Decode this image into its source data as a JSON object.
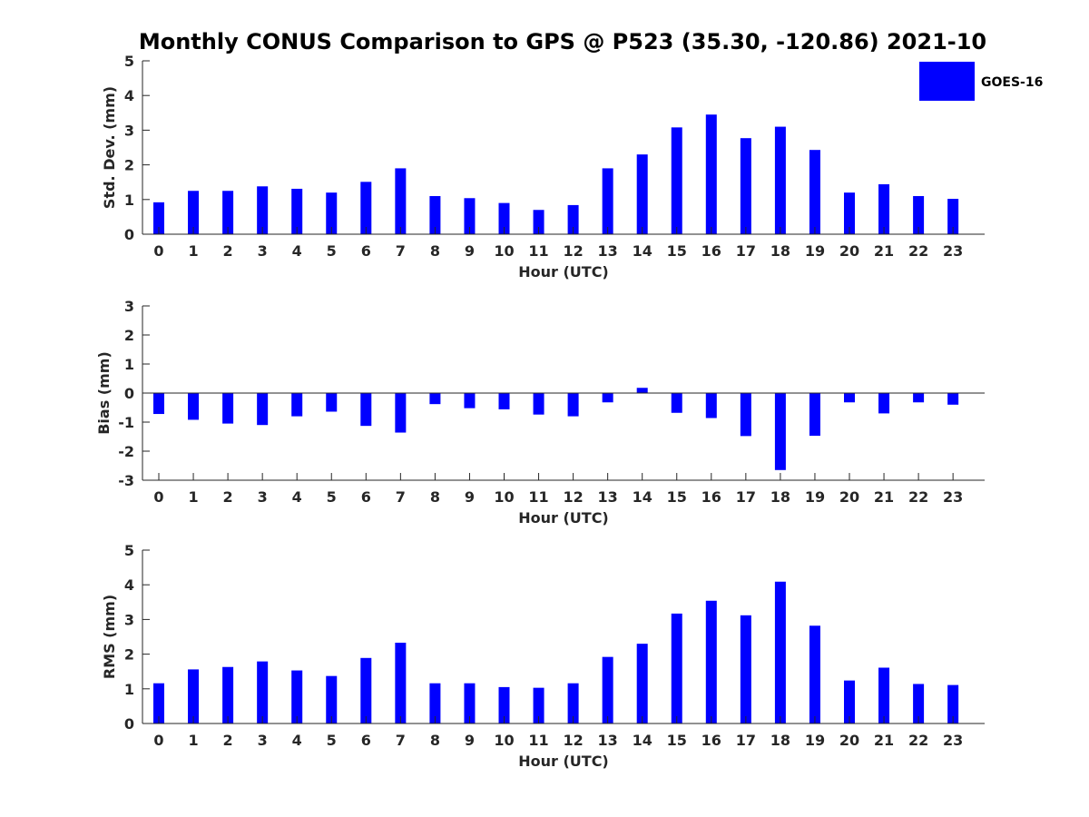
{
  "chart_data": [
    {
      "type": "bar",
      "title": "Monthly CONUS Comparison to GPS @ P523 (35.30, -120.86) 2021-10",
      "xlabel": "Hour (UTC)",
      "ylabel": "Std. Dev. (mm)",
      "ylim": [
        0,
        5
      ],
      "yticks": [
        "0",
        "1",
        "2",
        "3",
        "4",
        "5"
      ],
      "categories": [
        "0",
        "1",
        "2",
        "3",
        "4",
        "5",
        "6",
        "7",
        "8",
        "9",
        "10",
        "11",
        "12",
        "13",
        "14",
        "15",
        "16",
        "17",
        "18",
        "19",
        "20",
        "21",
        "22",
        "23"
      ],
      "series": [
        {
          "name": "GOES-16",
          "color": "#0000ff",
          "values": [
            0.92,
            1.25,
            1.25,
            1.38,
            1.31,
            1.2,
            1.51,
            1.9,
            1.1,
            1.04,
            0.9,
            0.7,
            0.84,
            1.9,
            2.3,
            3.08,
            3.45,
            2.77,
            3.1,
            2.43,
            1.2,
            1.44,
            1.1,
            1.02
          ]
        }
      ],
      "legend": {
        "position": "top-right",
        "entries": [
          "GOES-16"
        ]
      },
      "grid": false
    },
    {
      "type": "bar",
      "xlabel": "Hour (UTC)",
      "ylabel": "Bias (mm)",
      "ylim": [
        -3,
        3
      ],
      "yticks": [
        "-3",
        "-2",
        "-1",
        "0",
        "1",
        "2",
        "3"
      ],
      "categories": [
        "0",
        "1",
        "2",
        "3",
        "4",
        "5",
        "6",
        "7",
        "8",
        "9",
        "10",
        "11",
        "12",
        "13",
        "14",
        "15",
        "16",
        "17",
        "18",
        "19",
        "20",
        "21",
        "22",
        "23"
      ],
      "series": [
        {
          "name": "GOES-16",
          "color": "#0000ff",
          "values": [
            -0.72,
            -0.92,
            -1.05,
            -1.1,
            -0.8,
            -0.64,
            -1.13,
            -1.36,
            -0.38,
            -0.52,
            -0.56,
            -0.74,
            -0.8,
            -0.32,
            0.18,
            -0.68,
            -0.86,
            -1.48,
            -2.65,
            -1.47,
            -0.32,
            -0.7,
            -0.32,
            -0.4
          ]
        }
      ],
      "grid": false
    },
    {
      "type": "bar",
      "xlabel": "Hour (UTC)",
      "ylabel": "RMS (mm)",
      "ylim": [
        0,
        5
      ],
      "yticks": [
        "0",
        "1",
        "2",
        "3",
        "4",
        "5"
      ],
      "categories": [
        "0",
        "1",
        "2",
        "3",
        "4",
        "5",
        "6",
        "7",
        "8",
        "9",
        "10",
        "11",
        "12",
        "13",
        "14",
        "15",
        "16",
        "17",
        "18",
        "19",
        "20",
        "21",
        "22",
        "23"
      ],
      "series": [
        {
          "name": "GOES-16",
          "color": "#0000ff",
          "values": [
            1.16,
            1.56,
            1.63,
            1.79,
            1.53,
            1.37,
            1.89,
            2.33,
            1.16,
            1.16,
            1.05,
            1.03,
            1.16,
            1.92,
            2.3,
            3.17,
            3.54,
            3.12,
            4.09,
            2.82,
            1.24,
            1.61,
            1.14,
            1.11
          ]
        }
      ],
      "grid": false
    }
  ]
}
